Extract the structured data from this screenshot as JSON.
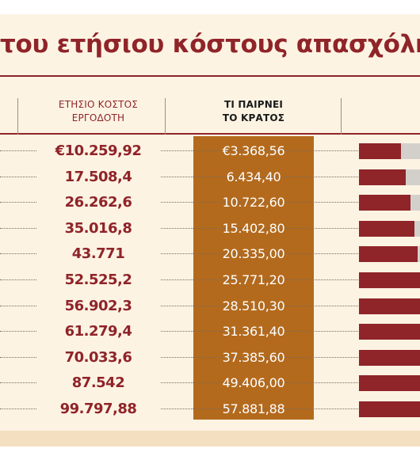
{
  "title": "του ετήσιου κόστους απασχόλησ",
  "headers": {
    "cost": [
      "ΕΤΗΣΙΟ ΚΟΣΤΟΣ",
      "ΕΡΓΟΔΟΤΗ"
    ],
    "state": [
      "ΤΙ ΠΑΙΡΝΕΙ",
      "ΤΟ ΚΡΑΤΟΣ"
    ]
  },
  "colors": {
    "accent": "#8f2429",
    "state_column": "#b46a1c",
    "panel": "#fdf3e3",
    "bar_remainder": "#d3d0cc"
  },
  "chart_data": {
    "type": "table",
    "columns": [
      "ΕΤΗΣΙΟ ΚΟΣΤΟΣ ΕΡΓΟΔΟΤΗ",
      "ΤΙ ΠΑΙΡΝΕΙ ΤΟ ΚΡΑΤΟΣ"
    ],
    "rows": [
      {
        "cost": "€10.259,92",
        "state": "€3.368,56",
        "cost_value": 10259.92,
        "state_value": 3368.56
      },
      {
        "cost": "17.508,4",
        "state": "6.434,40",
        "cost_value": 17508.4,
        "state_value": 6434.4
      },
      {
        "cost": "26.262,6",
        "state": "10.722,60",
        "cost_value": 26262.6,
        "state_value": 10722.6
      },
      {
        "cost": "35.016,8",
        "state": "15.402,80",
        "cost_value": 35016.8,
        "state_value": 15402.8
      },
      {
        "cost": "43.771",
        "state": "20.335,00",
        "cost_value": 43771,
        "state_value": 20335.0
      },
      {
        "cost": "52.525,2",
        "state": "25.771,20",
        "cost_value": 52525.2,
        "state_value": 25771.2
      },
      {
        "cost": "56.902,3",
        "state": "28.510,30",
        "cost_value": 56902.3,
        "state_value": 28510.3
      },
      {
        "cost": "61.279,4",
        "state": "31.361,40",
        "cost_value": 61279.4,
        "state_value": 31361.4
      },
      {
        "cost": "70.033,6",
        "state": "37.385,60",
        "cost_value": 70033.6,
        "state_value": 37385.6
      },
      {
        "cost": "87.542",
        "state": "49.406,00",
        "cost_value": 87542,
        "state_value": 49406.0
      },
      {
        "cost": "99.797,88",
        "state": "57.881,88",
        "cost_value": 99797.88,
        "state_value": 57881.88
      }
    ]
  }
}
